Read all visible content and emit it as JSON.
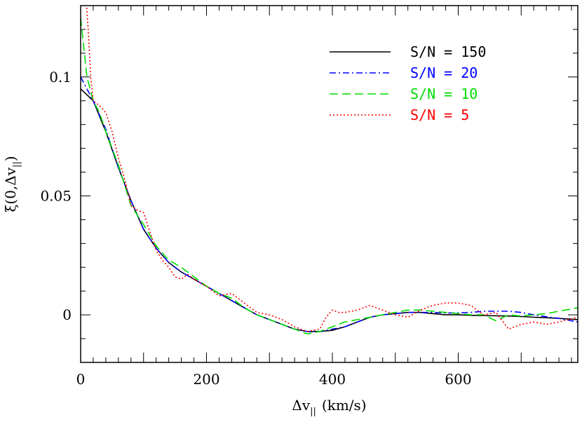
{
  "chart_data": {
    "type": "line",
    "xlabel_main": "Δv",
    "xlabel_sub": "||",
    "xlabel_unit": "(km/s)",
    "ylabel_main": "ξ(0,Δv",
    "ylabel_sub": "||",
    "ylabel_end": ")",
    "xlim": [
      0,
      790
    ],
    "ylim": [
      -0.02,
      0.13
    ],
    "x_ticks": [
      0,
      200,
      400,
      600
    ],
    "x_tick_labels": [
      "0",
      "200",
      "400",
      "600"
    ],
    "y_ticks": [
      0,
      0.05,
      0.1
    ],
    "y_tick_labels": [
      "0",
      "0.05",
      "0.1"
    ],
    "legend_position": "top-right",
    "series": [
      {
        "name": "S/N = 150",
        "color": "#000000",
        "dash": "solid",
        "x": [
          0,
          20,
          40,
          60,
          80,
          100,
          120,
          140,
          160,
          180,
          200,
          220,
          240,
          260,
          280,
          300,
          320,
          340,
          360,
          380,
          400,
          420,
          440,
          460,
          480,
          500,
          520,
          540,
          560,
          580,
          600,
          620,
          640,
          660,
          680,
          700,
          720,
          740,
          760,
          790
        ],
        "y": [
          0.095,
          0.09,
          0.077,
          0.062,
          0.048,
          0.036,
          0.028,
          0.022,
          0.018,
          0.015,
          0.012,
          0.009,
          0.006,
          0.003,
          0.0,
          -0.002,
          -0.004,
          -0.006,
          -0.007,
          -0.007,
          -0.0065,
          -0.005,
          -0.003,
          -0.001,
          0.0,
          0.0005,
          0.001,
          0.001,
          0.0005,
          0.0,
          0.0,
          -0.0002,
          -0.0003,
          -0.0004,
          -0.0005,
          -0.0007,
          -0.001,
          -0.0012,
          -0.0015,
          -0.002
        ]
      },
      {
        "name": "S/N = 20",
        "color": "#0000ff",
        "dash": "dashdot",
        "x": [
          0,
          20,
          40,
          60,
          80,
          100,
          120,
          140,
          160,
          180,
          200,
          220,
          240,
          260,
          280,
          300,
          320,
          340,
          360,
          380,
          400,
          420,
          440,
          460,
          480,
          500,
          520,
          540,
          560,
          580,
          600,
          620,
          640,
          660,
          680,
          700,
          720,
          740,
          760,
          790
        ],
        "y": [
          0.1,
          0.09,
          0.078,
          0.062,
          0.048,
          0.036,
          0.028,
          0.022,
          0.018,
          0.015,
          0.012,
          0.009,
          0.006,
          0.003,
          0.0,
          -0.002,
          -0.004,
          -0.006,
          -0.007,
          -0.007,
          -0.006,
          -0.005,
          -0.003,
          -0.001,
          0.0,
          0.0005,
          0.001,
          0.001,
          0.001,
          0.0008,
          0.0008,
          0.001,
          0.0015,
          0.0015,
          0.0015,
          0.001,
          0.0,
          -0.0008,
          -0.0015,
          -0.003
        ]
      },
      {
        "name": "S/N = 10",
        "color": "#00dd00",
        "dash": "dashed",
        "x": [
          0,
          10,
          20,
          30,
          40,
          60,
          80,
          100,
          120,
          140,
          160,
          180,
          200,
          220,
          240,
          260,
          280,
          300,
          320,
          340,
          360,
          380,
          400,
          420,
          440,
          460,
          480,
          500,
          520,
          540,
          560,
          580,
          600,
          620,
          640,
          660,
          680,
          700,
          720,
          740,
          760,
          790
        ],
        "y": [
          0.125,
          0.1,
          0.09,
          0.085,
          0.077,
          0.063,
          0.046,
          0.038,
          0.029,
          0.023,
          0.02,
          0.016,
          0.012,
          0.009,
          0.007,
          0.003,
          0.0,
          -0.002,
          -0.004,
          -0.006,
          -0.008,
          -0.007,
          -0.005,
          -0.003,
          -0.002,
          -0.001,
          0.0,
          0.001,
          0.002,
          0.002,
          0.0015,
          0.001,
          0.0005,
          0.0,
          0.0,
          -0.0025,
          0.0,
          -0.0005,
          0.0,
          0.0005,
          0.0015,
          0.003
        ]
      },
      {
        "name": "S/N = 5",
        "color": "#ff0000",
        "dash": "dotted",
        "x": [
          8,
          12,
          16,
          20,
          30,
          40,
          50,
          60,
          70,
          80,
          90,
          100,
          110,
          120,
          130,
          140,
          150,
          160,
          170,
          180,
          200,
          220,
          240,
          260,
          280,
          300,
          320,
          340,
          360,
          380,
          390,
          400,
          410,
          420,
          440,
          460,
          480,
          500,
          520,
          540,
          560,
          580,
          600,
          620,
          640,
          660,
          680,
          700,
          720,
          740,
          760,
          790
        ],
        "y": [
          0.135,
          0.12,
          0.1,
          0.09,
          0.088,
          0.085,
          0.077,
          0.066,
          0.057,
          0.046,
          0.044,
          0.043,
          0.035,
          0.027,
          0.023,
          0.02,
          0.016,
          0.015,
          0.017,
          0.015,
          0.012,
          0.008,
          0.009,
          0.005,
          0.001,
          0.0,
          -0.002,
          -0.005,
          -0.007,
          -0.006,
          -0.001,
          0.002,
          0.001,
          0.001,
          0.002,
          0.004,
          0.002,
          0.0,
          -0.001,
          0.002,
          0.004,
          0.005,
          0.005,
          0.004,
          0.0,
          0.001,
          -0.006,
          -0.004,
          -0.003,
          -0.004,
          -0.003,
          -0.001
        ]
      }
    ]
  }
}
